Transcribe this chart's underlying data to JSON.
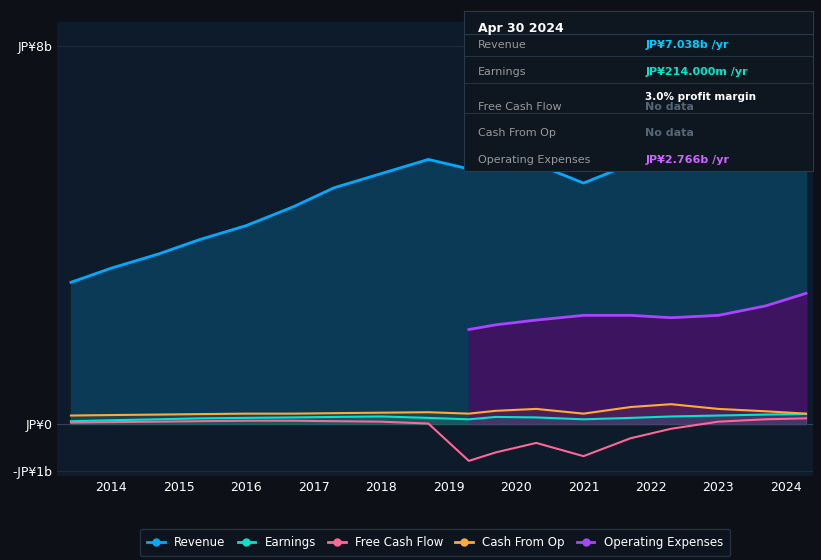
{
  "background_color": "#0d1117",
  "plot_bg_color": "#0d1b2a",
  "title_box": {
    "date": "Apr 30 2024",
    "rows": [
      {
        "label": "Revenue",
        "value": "JP¥7.038b /yr",
        "value_color": "#00ccff",
        "note": null
      },
      {
        "label": "Earnings",
        "value": "JP¥214.000m /yr",
        "value_color": "#00e5cc",
        "note": "3.0% profit margin"
      },
      {
        "label": "Free Cash Flow",
        "value": "No data",
        "value_color": "#556677",
        "note": null
      },
      {
        "label": "Cash From Op",
        "value": "No data",
        "value_color": "#556677",
        "note": null
      },
      {
        "label": "Operating Expenses",
        "value": "JP¥2.766b /yr",
        "value_color": "#cc66ff",
        "note": null
      }
    ]
  },
  "years": [
    2013.4,
    2014.0,
    2014.7,
    2015.3,
    2016.0,
    2016.7,
    2017.3,
    2018.0,
    2018.7,
    2019.3,
    2019.7,
    2020.3,
    2021.0,
    2021.7,
    2022.3,
    2023.0,
    2023.7,
    2024.3
  ],
  "revenue": [
    3.0,
    3.3,
    3.6,
    3.9,
    4.2,
    4.6,
    5.0,
    5.3,
    5.6,
    5.4,
    5.8,
    5.5,
    5.1,
    5.5,
    6.0,
    6.8,
    7.2,
    7.038
  ],
  "earnings": [
    0.06,
    0.08,
    0.1,
    0.12,
    0.13,
    0.14,
    0.15,
    0.16,
    0.13,
    0.1,
    0.15,
    0.14,
    0.1,
    0.13,
    0.16,
    0.18,
    0.2,
    0.214
  ],
  "free_cash_flow": [
    0.03,
    0.04,
    0.05,
    0.06,
    0.07,
    0.07,
    0.06,
    0.05,
    0.01,
    -0.78,
    -0.6,
    -0.4,
    -0.68,
    -0.3,
    -0.1,
    0.05,
    0.1,
    0.12
  ],
  "cash_from_op": [
    0.18,
    0.19,
    0.2,
    0.21,
    0.22,
    0.22,
    0.23,
    0.24,
    0.25,
    0.22,
    0.28,
    0.32,
    0.22,
    0.36,
    0.42,
    0.32,
    0.27,
    0.22
  ],
  "op_years": [
    2019.3,
    2019.7,
    2020.3,
    2021.0,
    2021.7,
    2022.3,
    2023.0,
    2023.7,
    2024.3
  ],
  "op_expenses": [
    2.0,
    2.1,
    2.2,
    2.3,
    2.3,
    2.25,
    2.3,
    2.5,
    2.766
  ],
  "ylim": [
    -1.1,
    8.5
  ],
  "yticks": [
    -1.0,
    0.0,
    8.0
  ],
  "ytick_labels": [
    "-JP¥1b",
    "JP¥0",
    "JP¥8b"
  ],
  "xtick_years": [
    2014,
    2015,
    2016,
    2017,
    2018,
    2019,
    2020,
    2021,
    2022,
    2023,
    2024
  ],
  "revenue_color": "#00aaff",
  "earnings_color": "#00e5cc",
  "free_cash_flow_color": "#ff6699",
  "cash_from_op_color": "#ffaa33",
  "op_expenses_color": "#aa44ff",
  "revenue_fill_color": "#0a3a55",
  "op_expenses_fill_color": "#3d1460",
  "legend_items": [
    {
      "label": "Revenue",
      "color": "#00aaff"
    },
    {
      "label": "Earnings",
      "color": "#00e5cc"
    },
    {
      "label": "Free Cash Flow",
      "color": "#ff6699"
    },
    {
      "label": "Cash From Op",
      "color": "#ffaa33"
    },
    {
      "label": "Operating Expenses",
      "color": "#aa44ff"
    }
  ]
}
